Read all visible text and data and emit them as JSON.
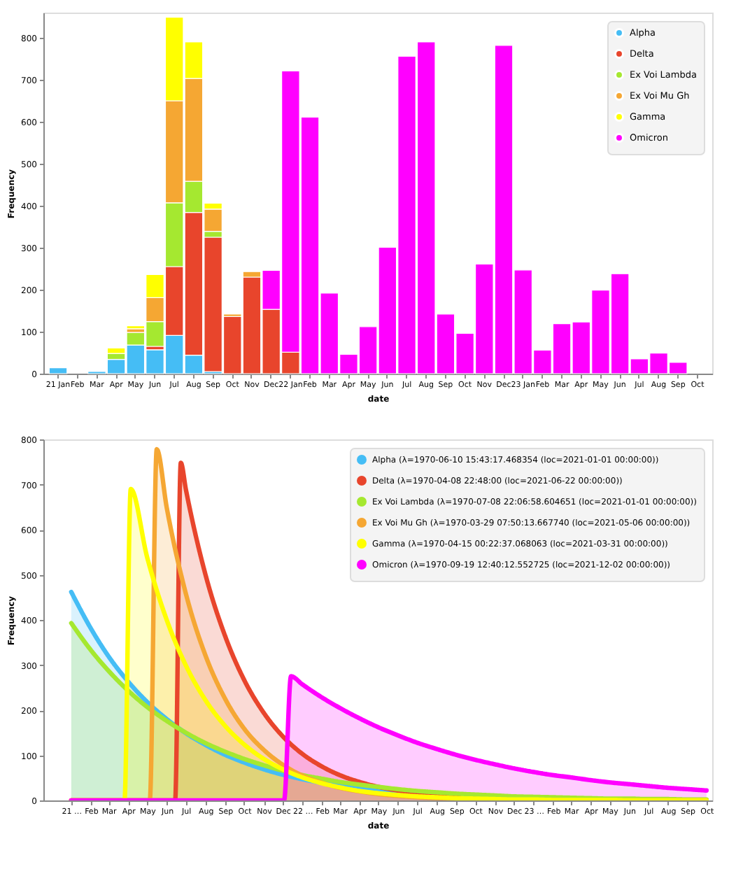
{
  "chart_data": [
    {
      "type": "bar",
      "stacked": true,
      "xlabel": "date",
      "ylabel": "Frequency",
      "legend": "top right",
      "categories": [
        "21 Jan",
        "Feb",
        "Mar",
        "Apr",
        "May",
        "Jun",
        "Jul",
        "Aug",
        "Sep",
        "Oct",
        "Nov",
        "Dec",
        "22 Jan",
        "Feb",
        "Mar",
        "Apr",
        "May",
        "Jun",
        "Jul",
        "Aug",
        "Sep",
        "Oct",
        "Nov",
        "Dec",
        "23 Jan",
        "Feb",
        "Mar",
        "Apr",
        "May",
        "Jun",
        "Jul",
        "Aug",
        "Sep",
        "Oct"
      ],
      "ylim": [
        0,
        860
      ],
      "yticks": [
        0,
        100,
        200,
        300,
        400,
        500,
        600,
        700,
        800
      ],
      "series": [
        {
          "name": "Alpha",
          "color": "#45bdf5",
          "values": [
            14,
            null,
            5,
            34,
            68,
            57,
            91,
            44,
            5,
            null,
            null,
            null,
            null,
            null,
            null,
            null,
            null,
            null,
            null,
            null,
            null,
            null,
            null,
            null,
            null,
            null,
            null,
            null,
            null,
            null,
            null,
            null,
            null,
            null
          ]
        },
        {
          "name": "Delta",
          "color": "#e8452c",
          "values": [
            null,
            null,
            null,
            null,
            null,
            8,
            164,
            340,
            320,
            136,
            230,
            153,
            51,
            null,
            null,
            null,
            null,
            null,
            null,
            null,
            null,
            null,
            null,
            null,
            null,
            null,
            null,
            null,
            null,
            null,
            null,
            null,
            null,
            null
          ]
        },
        {
          "name": "Ex Voi Lambda",
          "color": "#a5e830",
          "values": [
            null,
            null,
            null,
            14,
            30,
            59,
            152,
            74,
            14,
            null,
            null,
            null,
            null,
            null,
            null,
            null,
            null,
            null,
            null,
            null,
            null,
            null,
            null,
            null,
            null,
            null,
            null,
            null,
            null,
            null,
            null,
            null,
            null,
            null
          ]
        },
        {
          "name": "Ex Voi Mu Gh",
          "color": "#f5a733",
          "values": [
            null,
            null,
            null,
            null,
            9,
            57,
            243,
            245,
            53,
            6,
            13,
            null,
            null,
            null,
            null,
            null,
            null,
            null,
            null,
            null,
            null,
            null,
            null,
            null,
            null,
            null,
            null,
            null,
            null,
            null,
            null,
            null,
            null,
            null
          ]
        },
        {
          "name": "Gamma",
          "color": "#ffff00",
          "values": [
            null,
            null,
            null,
            13,
            7,
            55,
            199,
            87,
            14,
            null,
            null,
            null,
            null,
            null,
            null,
            null,
            null,
            null,
            null,
            null,
            null,
            null,
            null,
            null,
            null,
            null,
            null,
            null,
            null,
            null,
            null,
            null,
            null,
            null
          ]
        },
        {
          "name": "Omicron",
          "color": "#ff00ff",
          "values": [
            null,
            null,
            null,
            null,
            null,
            null,
            null,
            null,
            null,
            null,
            null,
            93,
            670,
            611,
            192,
            46,
            112,
            301,
            756,
            790,
            142,
            96,
            261,
            782,
            247,
            56,
            119,
            123,
            199,
            238,
            35,
            49,
            27,
            null
          ]
        }
      ]
    },
    {
      "type": "area",
      "xlabel": "date",
      "ylabel": "Frequency",
      "legend": "top right",
      "xlim": [
        "2020-11-18",
        "2023-10-10"
      ],
      "ylim": [
        0,
        800
      ],
      "yticks": [
        0,
        100,
        200,
        300,
        400,
        500,
        600,
        700,
        800
      ],
      "xticks": [
        {
          "value": "2021-01",
          "label": "21 …"
        },
        {
          "value": "2021-02",
          "label": "Feb"
        },
        {
          "value": "2021-03",
          "label": "Mar"
        },
        {
          "value": "2021-04",
          "label": "Apr"
        },
        {
          "value": "2021-05",
          "label": "May"
        },
        {
          "value": "2021-06",
          "label": "Jun"
        },
        {
          "value": "2021-07",
          "label": "Jul"
        },
        {
          "value": "2021-08",
          "label": "Aug"
        },
        {
          "value": "2021-09",
          "label": "Sep"
        },
        {
          "value": "2021-10",
          "label": "Oct"
        },
        {
          "value": "2021-11",
          "label": "Nov"
        },
        {
          "value": "2021-12",
          "label": "Dec"
        },
        {
          "value": "2022-01",
          "label": "22 …"
        },
        {
          "value": "2022-02",
          "label": "Feb"
        },
        {
          "value": "2022-03",
          "label": "Mar"
        },
        {
          "value": "2022-04",
          "label": "Apr"
        },
        {
          "value": "2022-05",
          "label": "May"
        },
        {
          "value": "2022-06",
          "label": "Jun"
        },
        {
          "value": "2022-07",
          "label": "Jul"
        },
        {
          "value": "2022-08",
          "label": "Aug"
        },
        {
          "value": "2022-09",
          "label": "Sep"
        },
        {
          "value": "2022-10",
          "label": "Oct"
        },
        {
          "value": "2022-11",
          "label": "Nov"
        },
        {
          "value": "2022-12",
          "label": "Dec"
        },
        {
          "value": "2023-01",
          "label": "23 …"
        },
        {
          "value": "2023-02",
          "label": "Feb"
        },
        {
          "value": "2023-03",
          "label": "Mar"
        },
        {
          "value": "2023-04",
          "label": "Apr"
        },
        {
          "value": "2023-05",
          "label": "May"
        },
        {
          "value": "2023-06",
          "label": "Jun"
        },
        {
          "value": "2023-07",
          "label": "Jul"
        },
        {
          "value": "2023-08",
          "label": "Aug"
        },
        {
          "value": "2023-09",
          "label": "Sep"
        },
        {
          "value": "2023-10",
          "label": "Oct"
        }
      ],
      "series": [
        {
          "name": "Alpha (λ=1970-06-10 15:43:17.468354 (loc=2021-01-01 00:00:00))",
          "color": "#45bdf5",
          "x": [
            "2021-01",
            "2021-02",
            "2021-03",
            "2021-04",
            "2021-05",
            "2021-06",
            "2021-07",
            "2021-08",
            "2021-09",
            "2021-10",
            "2021-11",
            "2021-12",
            "2022-01",
            "2022-02",
            "2022-03",
            "2022-04",
            "2022-05",
            "2022-06",
            "2022-07",
            "2022-08",
            "2022-09",
            "2022-10",
            "2022-11",
            "2022-12",
            "2023-01",
            "2023-02",
            "2023-03",
            "2023-04",
            "2023-05",
            "2023-06",
            "2023-07",
            "2023-08",
            "2023-09",
            "2023-10"
          ],
          "values": [
            462,
            381,
            319,
            263,
            218,
            180,
            149,
            123,
            101,
            84,
            69,
            57,
            47,
            39,
            33,
            27,
            22,
            18,
            15,
            13,
            10,
            9,
            7,
            6,
            5,
            4,
            3,
            3,
            2,
            2,
            2,
            1,
            1,
            1
          ]
        },
        {
          "name": "Delta (λ=1970-04-08 22:48:00 (loc=2021-06-22 00:00:00))",
          "color": "#e8452c",
          "x": [
            "2021-01-01",
            "2021-06-14",
            "2021-06-23",
            "2021-07",
            "2021-08",
            "2021-09",
            "2021-10",
            "2021-11",
            "2021-12",
            "2022-01",
            "2022-02",
            "2022-03",
            "2022-04",
            "2022-05",
            "2022-06",
            "2022-07",
            "2022-08",
            "2022-09",
            "2022-10",
            "2022-11",
            "2022-12",
            "2023-01",
            "2023-02",
            "2023-03",
            "2023-04",
            "2023-05",
            "2023-06",
            "2023-07",
            "2023-08",
            "2023-09",
            "2023-10"
          ],
          "values": [
            0,
            0,
            748,
            689,
            500,
            364,
            267,
            194,
            142,
            103,
            75,
            56,
            41,
            30,
            22,
            16,
            12,
            8,
            6,
            4,
            3,
            2,
            2,
            1,
            1,
            1,
            0,
            0,
            0,
            0,
            0
          ]
        },
        {
          "name": "Ex Voi Lambda (λ=1970-07-08 22:06:58.604651 (loc=2021-01-01 00:00:00))",
          "color": "#a5e830",
          "x": [
            "2021-01",
            "2021-02",
            "2021-03",
            "2021-04",
            "2021-05",
            "2021-06",
            "2021-07",
            "2021-08",
            "2021-09",
            "2021-10",
            "2021-11",
            "2021-12",
            "2022-01",
            "2022-02",
            "2022-03",
            "2022-04",
            "2022-05",
            "2022-06",
            "2022-07",
            "2022-08",
            "2022-09",
            "2022-10",
            "2022-11",
            "2022-12",
            "2023-01",
            "2023-02",
            "2023-03",
            "2023-04",
            "2023-05",
            "2023-06",
            "2023-07",
            "2023-08",
            "2023-09",
            "2023-10"
          ],
          "values": [
            393,
            333,
            287,
            243,
            207,
            176,
            150,
            127,
            108,
            92,
            78,
            66,
            56,
            48,
            41,
            35,
            30,
            25,
            21,
            18,
            15,
            13,
            11,
            9,
            8,
            7,
            6,
            5,
            4,
            4,
            3,
            3,
            2,
            2
          ]
        },
        {
          "name": "Ex Voi Mu Gh (λ=1970-03-29 07:50:13.667740 (loc=2021-05-06 00:00:00))",
          "color": "#f5a733",
          "x": [
            "2021-01-01",
            "2021-05-05",
            "2021-05-16",
            "2021-06",
            "2021-07",
            "2021-08",
            "2021-09",
            "2021-10",
            "2021-11",
            "2021-12",
            "2022-01",
            "2022-02",
            "2022-03",
            "2022-04",
            "2022-05",
            "2022-06",
            "2022-07",
            "2022-08",
            "2022-09",
            "2022-10",
            "2022-11",
            "2022-12",
            "2023-01",
            "2023-02",
            "2023-03",
            "2023-04",
            "2023-05",
            "2023-06",
            "2023-07",
            "2023-08",
            "2023-09",
            "2023-10"
          ],
          "values": [
            0,
            0,
            778,
            647,
            458,
            321,
            225,
            159,
            112,
            79,
            55,
            39,
            28,
            20,
            14,
            10,
            7,
            5,
            3,
            2,
            2,
            1,
            1,
            1,
            0,
            0,
            0,
            0,
            0,
            0,
            0,
            0
          ]
        },
        {
          "name": "Gamma (λ=1970-04-15 00:22:37.068063 (loc=2021-03-31 00:00:00))",
          "color": "#ffff00",
          "x": [
            "2021-01-01",
            "2021-03-26",
            "2021-04-05",
            "2021-05",
            "2021-06",
            "2021-07",
            "2021-08",
            "2021-09",
            "2021-10",
            "2021-11",
            "2021-12",
            "2022-01",
            "2022-02",
            "2022-03",
            "2022-04",
            "2022-05",
            "2022-06",
            "2022-07",
            "2022-08",
            "2022-09",
            "2022-10",
            "2022-11",
            "2022-12",
            "2023-01",
            "2023-02",
            "2023-03",
            "2023-04",
            "2023-05",
            "2023-06",
            "2023-07",
            "2023-08",
            "2023-09",
            "2023-10"
          ],
          "values": [
            0,
            0,
            690,
            538,
            399,
            299,
            222,
            165,
            124,
            92,
            69,
            51,
            38,
            29,
            21,
            16,
            12,
            9,
            7,
            5,
            4,
            3,
            2,
            2,
            1,
            1,
            1,
            1,
            0,
            0,
            0,
            0,
            0
          ]
        },
        {
          "name": "Omicron (λ=1970-09-19 12:40:12.552725 (loc=2021-12-02 00:00:00))",
          "color": "#ff00ff",
          "x": [
            "2021-01-01",
            "2021-12-03",
            "2021-12-14",
            "2022-01",
            "2022-02",
            "2022-03",
            "2022-04",
            "2022-05",
            "2022-06",
            "2022-07",
            "2022-08",
            "2022-09",
            "2022-10",
            "2022-11",
            "2022-12",
            "2023-01",
            "2023-02",
            "2023-03",
            "2023-04",
            "2023-05",
            "2023-06",
            "2023-07",
            "2023-08",
            "2023-09",
            "2023-10"
          ],
          "values": [
            0,
            0,
            275,
            257,
            228,
            205,
            182,
            162,
            144,
            128,
            114,
            101,
            90,
            80,
            71,
            63,
            56,
            51,
            45,
            40,
            36,
            32,
            28,
            25,
            22
          ]
        }
      ]
    }
  ]
}
